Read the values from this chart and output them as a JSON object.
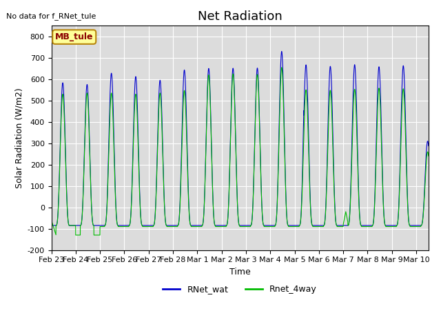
{
  "title": "Net Radiation",
  "top_left_text": "No data for f_RNet_tule",
  "xlabel": "Time",
  "ylabel": "Solar Radiation (W/m2)",
  "ylim": [
    -200,
    850
  ],
  "yticks": [
    -200,
    -100,
    0,
    100,
    200,
    300,
    400,
    500,
    600,
    700,
    800
  ],
  "color_blue": "#0000CD",
  "color_green": "#00BB00",
  "legend_labels": [
    "RNet_wat",
    "Rnet_4way"
  ],
  "legend_box_label": "MB_tule",
  "legend_box_color": "#FFFF99",
  "legend_box_text_color": "#8B0000",
  "background_color": "#DCDCDC",
  "xtick_labels": [
    "Feb 23",
    "Feb 24",
    "Feb 25",
    "Feb 26",
    "Feb 27",
    "Feb 28",
    "Mar 1",
    "Mar 2",
    "Mar 3",
    "Mar 4",
    "Mar 5",
    "Mar 6",
    "Mar 7",
    "Mar 8",
    "Mar 9",
    "Mar 10"
  ],
  "night_blue": -85,
  "night_green": -85,
  "title_fontsize": 13,
  "axis_label_fontsize": 9,
  "tick_fontsize": 8
}
